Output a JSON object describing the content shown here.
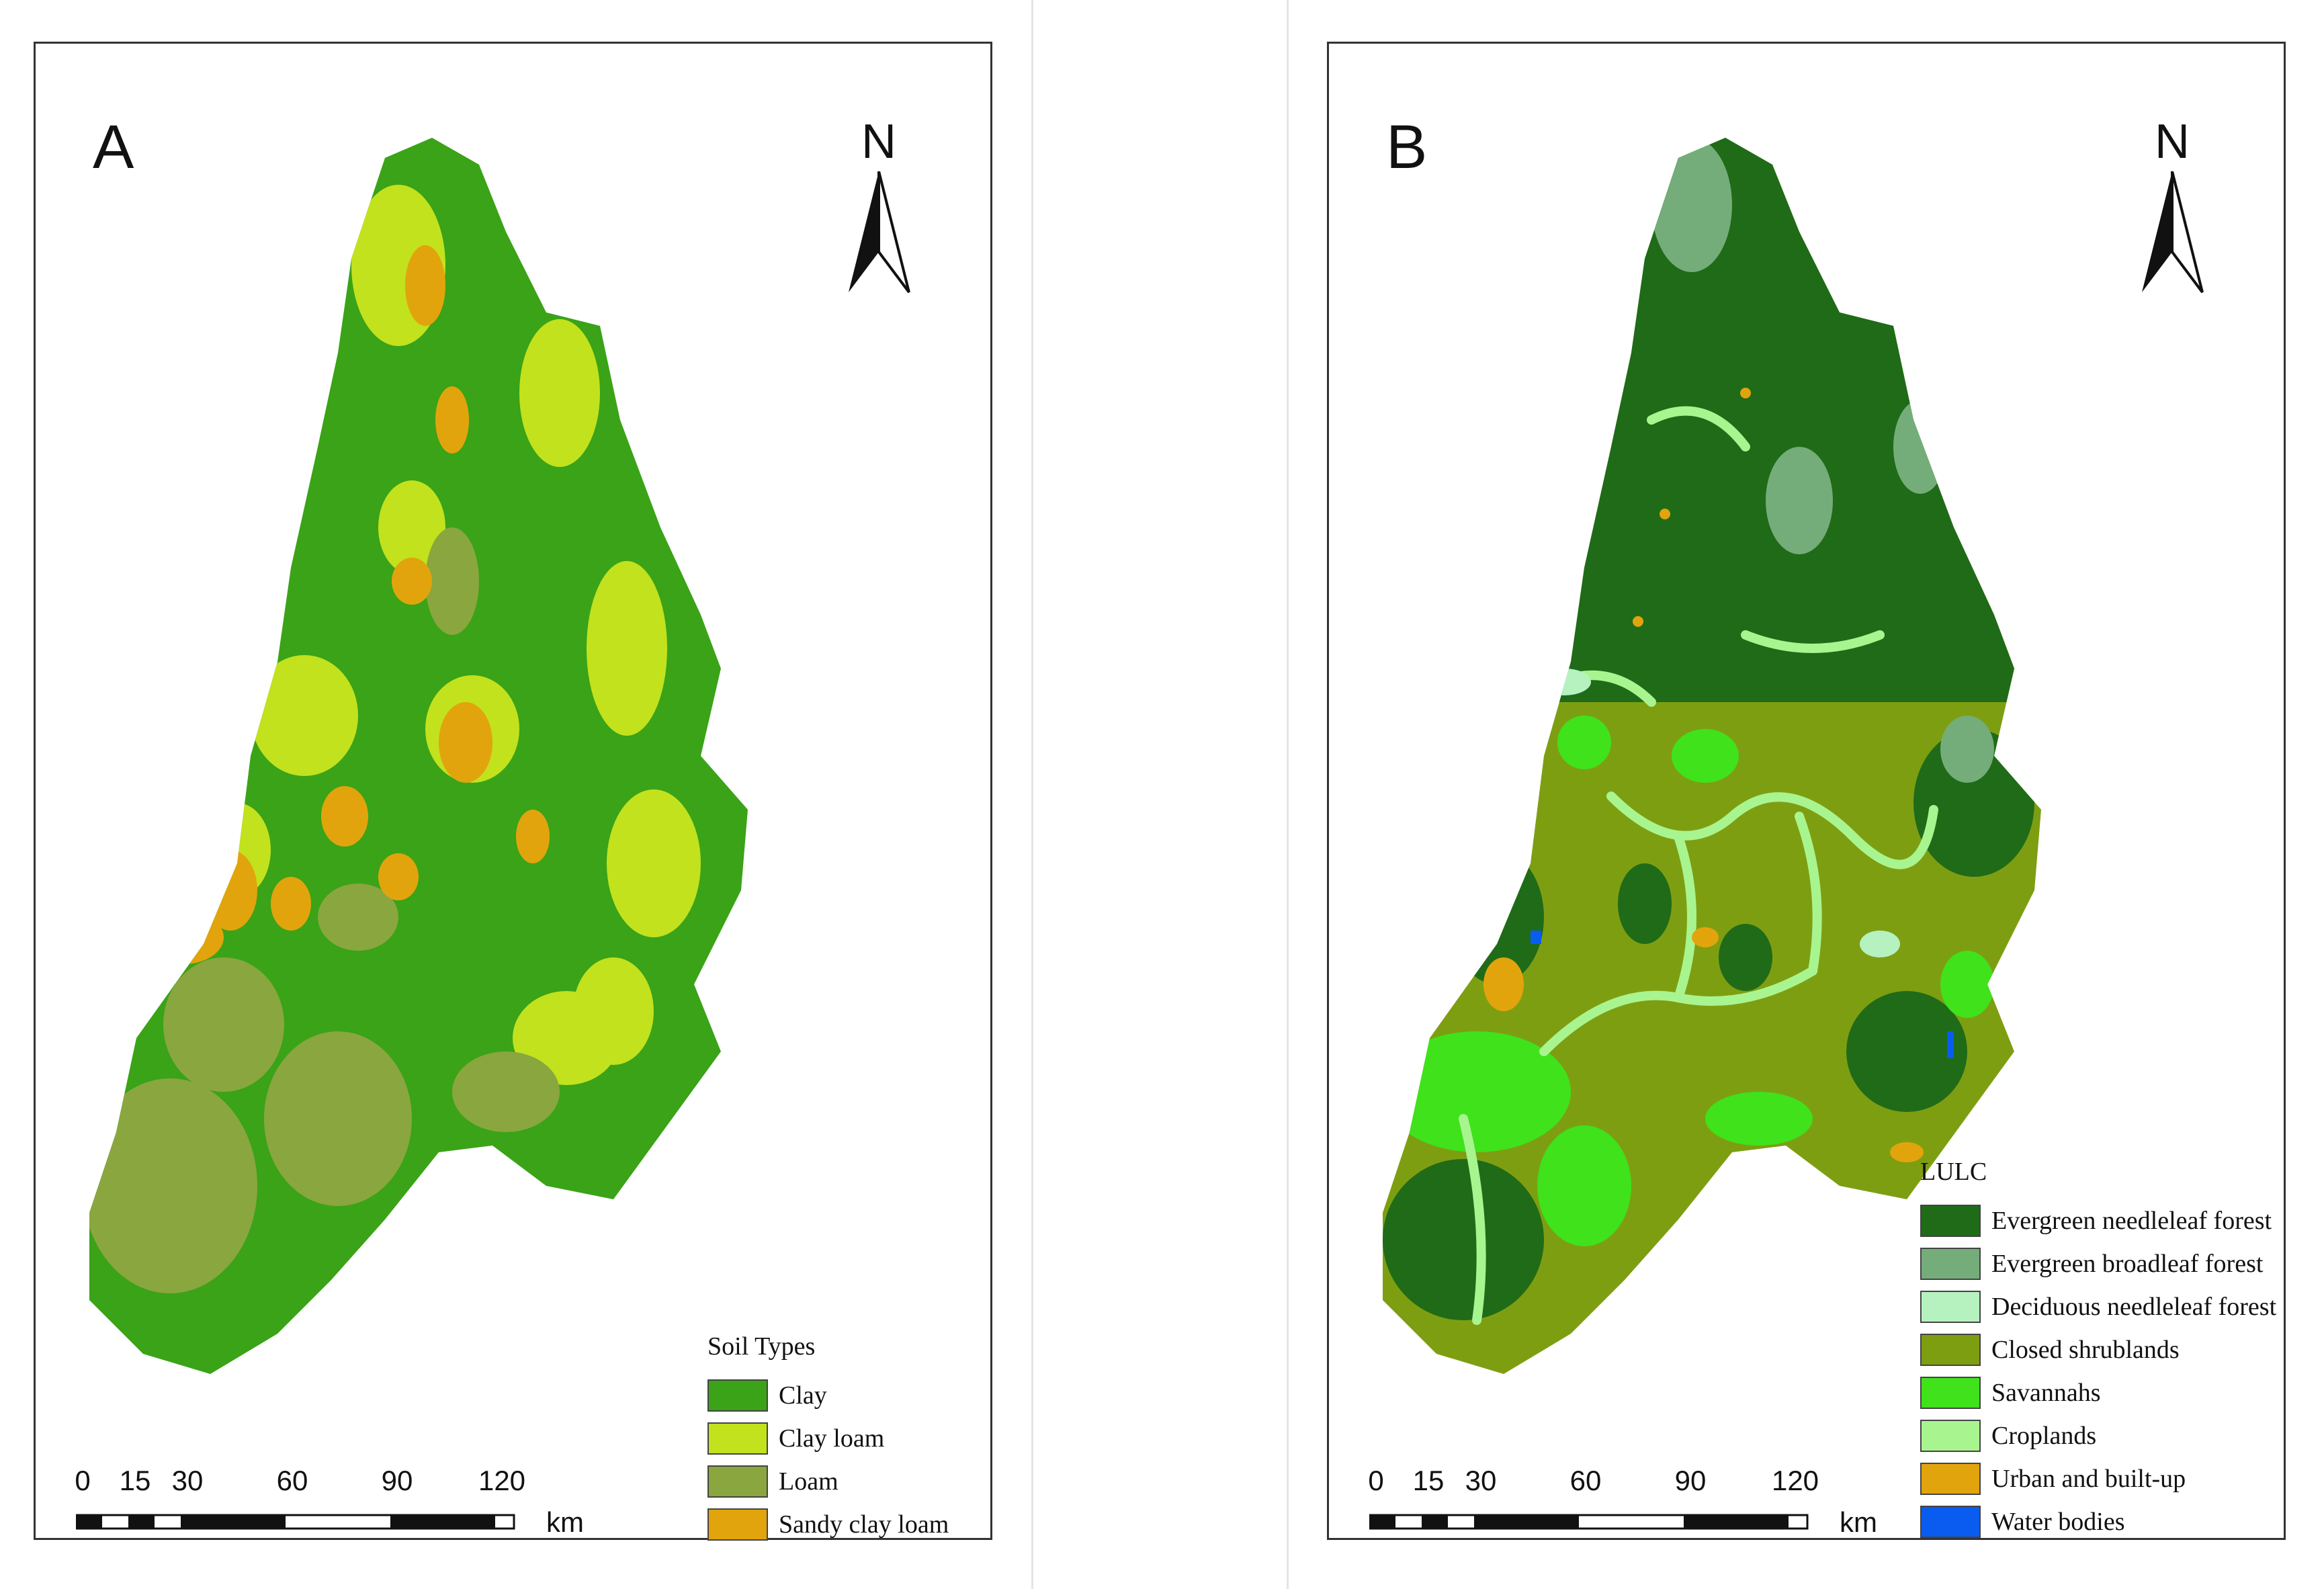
{
  "panels": [
    {
      "letter": "A",
      "north_label": "N",
      "scale": {
        "ticks": [
          "0",
          "15",
          "30",
          "60",
          "90",
          "120"
        ],
        "unit": "km"
      },
      "legend": {
        "title": "Soil Types",
        "items": [
          {
            "label": "Clay",
            "color": "#3aa317"
          },
          {
            "label": "Clay loam",
            "color": "#c2e21d"
          },
          {
            "label": "Loam",
            "color": "#8aa63f"
          },
          {
            "label": "Sandy clay loam",
            "color": "#e2a40c"
          }
        ]
      }
    },
    {
      "letter": "B",
      "north_label": "N",
      "scale": {
        "ticks": [
          "0",
          "15",
          "30",
          "60",
          "90",
          "120"
        ],
        "unit": "km"
      },
      "legend": {
        "title": "LULC",
        "items": [
          {
            "label": "Evergreen needleleaf forest",
            "color": "#1f6b18"
          },
          {
            "label": "Evergreen broadleaf forest",
            "color": "#74ad7a"
          },
          {
            "label": "Deciduous needleleaf forest",
            "color": "#b5f2c0"
          },
          {
            "label": "Closed shrublands",
            "color": "#7e9e12"
          },
          {
            "label": "Savannahs",
            "color": "#3fe21b"
          },
          {
            "label": "Croplands",
            "color": "#a8f590"
          },
          {
            "label": "Urban and built-up",
            "color": "#e2a40c"
          },
          {
            "label": "Water bodies",
            "color": "#0a5cf0"
          }
        ]
      }
    }
  ]
}
